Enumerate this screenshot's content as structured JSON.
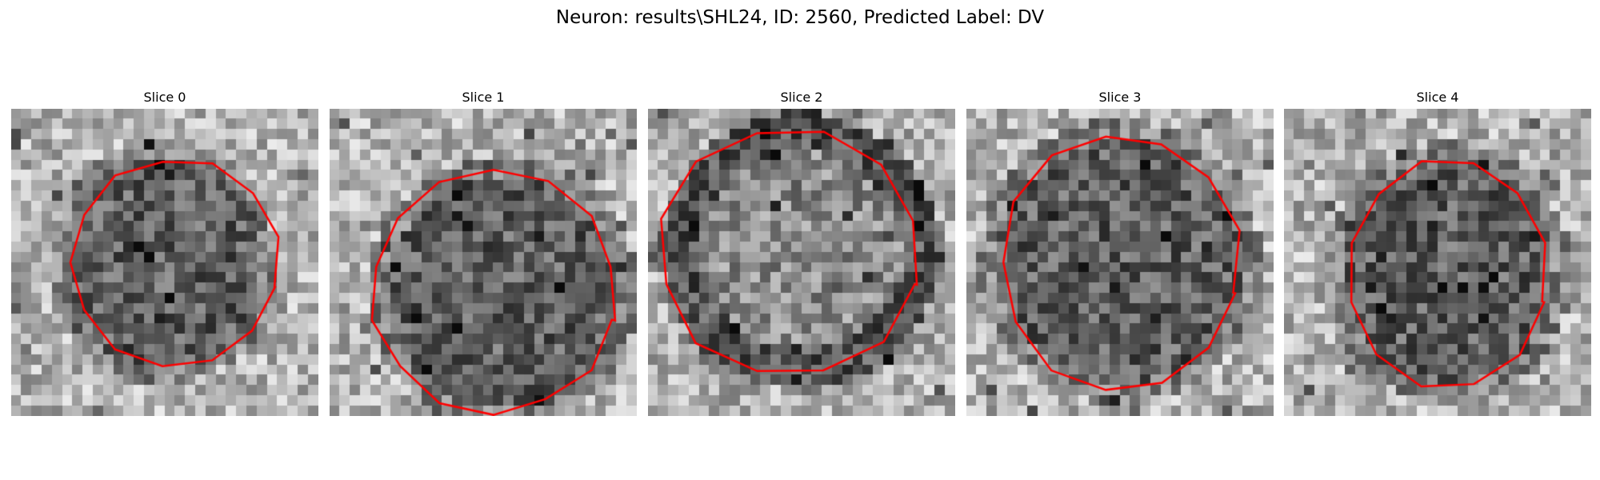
{
  "figure": {
    "title": "Neuron: results\\SHL24, ID: 2560, Predicted Label: DV"
  },
  "panels": [
    {
      "title": "Slice 0"
    },
    {
      "title": "Slice 1"
    },
    {
      "title": "Slice 2"
    },
    {
      "title": "Slice 3"
    },
    {
      "title": "Slice 4"
    }
  ],
  "colors": {
    "contour": "#ff0000",
    "background": "#ffffff"
  }
}
